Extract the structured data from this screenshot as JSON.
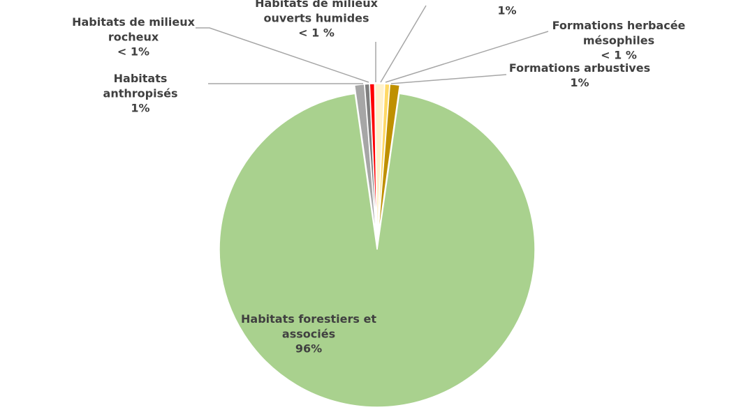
{
  "chart_data": {
    "type": "pie",
    "categories": [
      "Habitats anthropisés",
      "Habitats de milieux rocheux",
      "Habitats de milieux ouverts humides",
      null,
      "Formations herbacée mésophiles",
      "Formations arbustives",
      "Habitats forestiers et associés"
    ],
    "values": [
      1,
      0.5,
      0.5,
      1,
      0.5,
      1,
      96
    ],
    "value_labels": [
      "1%",
      "< 1%",
      "< 1 %",
      "1%",
      "< 1 %",
      "1%",
      "96%"
    ],
    "colors": [
      "#a6a6a6",
      "#7f7f7f",
      "#ff0000",
      "#fff2cc",
      "#ffd966",
      "#bf9000",
      "#a9d18e"
    ]
  }
}
